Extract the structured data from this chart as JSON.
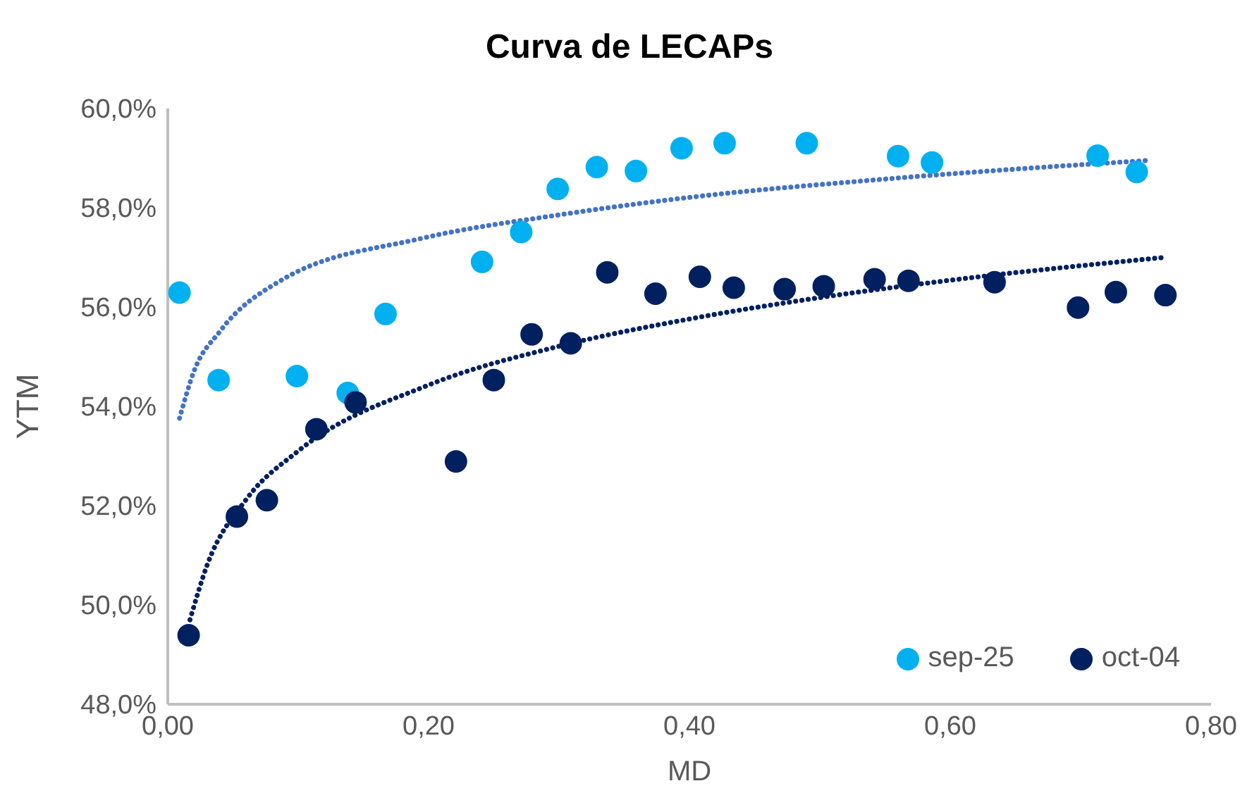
{
  "chart_data": {
    "type": "scatter",
    "title": "Curva de LECAPs",
    "xlabel": "MD",
    "ylabel": "YTM",
    "xlim": [
      0,
      0.8
    ],
    "xticks": [
      {
        "value": 0,
        "label": "0,00"
      },
      {
        "value": 0.2,
        "label": "0,20"
      },
      {
        "value": 0.4,
        "label": "0,40"
      },
      {
        "value": 0.6,
        "label": "0,60"
      },
      {
        "value": 0.8,
        "label": "0,80"
      }
    ],
    "ylim": [
      48,
      60
    ],
    "yticks": [
      {
        "value": 48,
        "label": "48,0%"
      },
      {
        "value": 50,
        "label": "50,0%"
      },
      {
        "value": 52,
        "label": "52,0%"
      },
      {
        "value": 54,
        "label": "54,0%"
      },
      {
        "value": 56,
        "label": "56,0%"
      },
      {
        "value": 58,
        "label": "58,0%"
      },
      {
        "value": 60,
        "label": "60,0%"
      }
    ],
    "grid": false,
    "legend": "bottom right",
    "marker": "circle",
    "series": [
      {
        "name": "sep-25",
        "color": "#00b0f0",
        "x": [
          0.009,
          0.039,
          0.099,
          0.138,
          0.167,
          0.241,
          0.271,
          0.299,
          0.329,
          0.359,
          0.394,
          0.427,
          0.49,
          0.56,
          0.586,
          0.713,
          0.743
        ],
        "values": [
          56.29,
          54.53,
          54.61,
          54.27,
          55.86,
          56.91,
          57.51,
          58.38,
          58.82,
          58.74,
          59.2,
          59.3,
          59.3,
          59.04,
          58.91,
          59.05,
          58.72
        ]
      },
      {
        "name": "oct-04",
        "color": "#002060",
        "x": [
          0.016,
          0.053,
          0.076,
          0.114,
          0.144,
          0.221,
          0.25,
          0.279,
          0.309,
          0.337,
          0.374,
          0.408,
          0.434,
          0.473,
          0.503,
          0.542,
          0.568,
          0.634,
          0.698,
          0.727,
          0.765
        ],
        "values": [
          49.39,
          51.78,
          52.11,
          53.54,
          54.08,
          52.89,
          54.53,
          55.45,
          55.27,
          56.7,
          56.27,
          56.61,
          56.39,
          56.36,
          56.42,
          56.56,
          56.53,
          56.5,
          55.99,
          56.3,
          56.24
        ]
      },
      {
        "type": "line",
        "line_style": "dotted",
        "marker": "none",
        "color": "#4472c4",
        "x": [
          0.009,
          0.02,
          0.04,
          0.087,
          0.194,
          0.301,
          0.407,
          0.528,
          0.635,
          0.75
        ],
        "values": [
          53.76,
          54.7,
          55.51,
          56.54,
          57.38,
          57.86,
          58.23,
          58.53,
          58.75,
          58.95
        ]
      },
      {
        "type": "line",
        "line_style": "dotted",
        "marker": "none",
        "color": "#002060",
        "x": [
          0.017,
          0.03,
          0.06,
          0.1,
          0.2,
          0.3,
          0.4,
          0.5,
          0.6,
          0.764
        ],
        "values": [
          49.7,
          50.79,
          52.12,
          53.1,
          54.43,
          55.21,
          55.76,
          56.19,
          56.54,
          57.0
        ]
      }
    ]
  }
}
